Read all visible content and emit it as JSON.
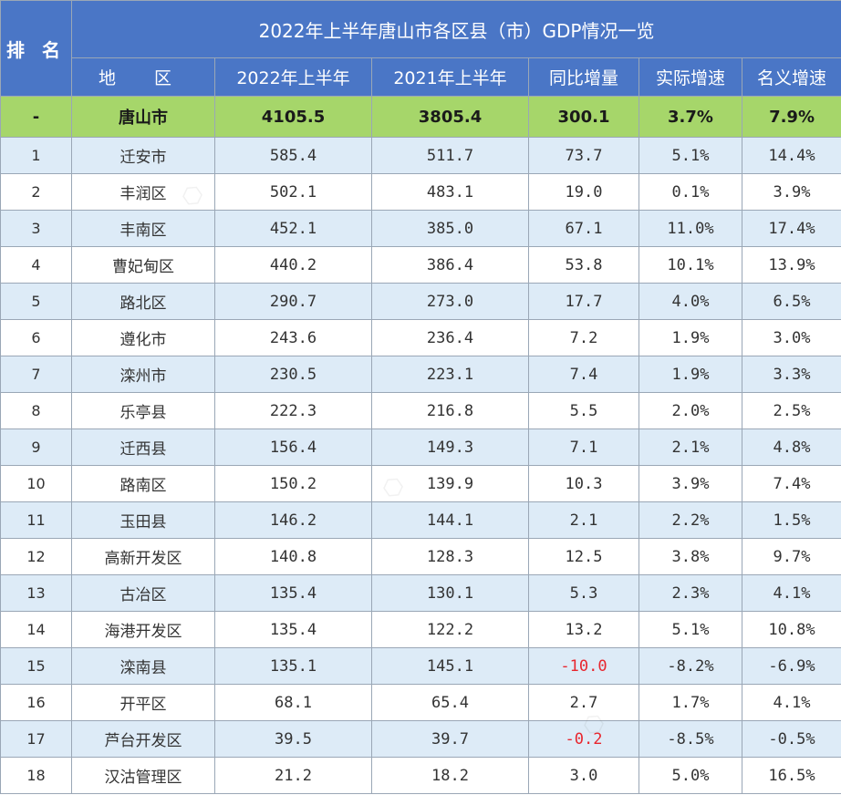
{
  "title": "2022年上半年唐山市各区县（市）GDP情况一览",
  "headers": {
    "rank": "排 名",
    "region": "地 区",
    "h2022": "2022年上半年",
    "h2021": "2021年上半年",
    "diff": "同比增量",
    "real": "实际增速",
    "nominal": "名义增速"
  },
  "total": {
    "rank": "-",
    "region": "唐山市",
    "v2022": "4105.5",
    "v2021": "3805.4",
    "diff": "300.1",
    "real": "3.7%",
    "nominal": "7.9%"
  },
  "rows": [
    {
      "rank": "1",
      "region": "迁安市",
      "v2022": "585.4",
      "v2021": "511.7",
      "diff": "73.7",
      "real": "5.1%",
      "nominal": "14.4%"
    },
    {
      "rank": "2",
      "region": "丰润区",
      "v2022": "502.1",
      "v2021": "483.1",
      "diff": "19.0",
      "real": "0.1%",
      "nominal": "3.9%"
    },
    {
      "rank": "3",
      "region": "丰南区",
      "v2022": "452.1",
      "v2021": "385.0",
      "diff": "67.1",
      "real": "11.0%",
      "nominal": "17.4%"
    },
    {
      "rank": "4",
      "region": "曹妃甸区",
      "v2022": "440.2",
      "v2021": "386.4",
      "diff": "53.8",
      "real": "10.1%",
      "nominal": "13.9%"
    },
    {
      "rank": "5",
      "region": "路北区",
      "v2022": "290.7",
      "v2021": "273.0",
      "diff": "17.7",
      "real": "4.0%",
      "nominal": "6.5%"
    },
    {
      "rank": "6",
      "region": "遵化市",
      "v2022": "243.6",
      "v2021": "236.4",
      "diff": "7.2",
      "real": "1.9%",
      "nominal": "3.0%"
    },
    {
      "rank": "7",
      "region": "滦州市",
      "v2022": "230.5",
      "v2021": "223.1",
      "diff": "7.4",
      "real": "1.9%",
      "nominal": "3.3%"
    },
    {
      "rank": "8",
      "region": "乐亭县",
      "v2022": "222.3",
      "v2021": "216.8",
      "diff": "5.5",
      "real": "2.0%",
      "nominal": "2.5%"
    },
    {
      "rank": "9",
      "region": "迁西县",
      "v2022": "156.4",
      "v2021": "149.3",
      "diff": "7.1",
      "real": "2.1%",
      "nominal": "4.8%"
    },
    {
      "rank": "10",
      "region": "路南区",
      "v2022": "150.2",
      "v2021": "139.9",
      "diff": "10.3",
      "real": "3.9%",
      "nominal": "7.4%"
    },
    {
      "rank": "11",
      "region": "玉田县",
      "v2022": "146.2",
      "v2021": "144.1",
      "diff": "2.1",
      "real": "2.2%",
      "nominal": "1.5%"
    },
    {
      "rank": "12",
      "region": "高新开发区",
      "v2022": "140.8",
      "v2021": "128.3",
      "diff": "12.5",
      "real": "3.8%",
      "nominal": "9.7%"
    },
    {
      "rank": "13",
      "region": "古冶区",
      "v2022": "135.4",
      "v2021": "130.1",
      "diff": "5.3",
      "real": "2.3%",
      "nominal": "4.1%"
    },
    {
      "rank": "14",
      "region": "海港开发区",
      "v2022": "135.4",
      "v2021": "122.2",
      "diff": "13.2",
      "real": "5.1%",
      "nominal": "10.8%"
    },
    {
      "rank": "15",
      "region": "滦南县",
      "v2022": "135.1",
      "v2021": "145.1",
      "diff": "-10.0",
      "real": "-8.2%",
      "nominal": "-6.9%"
    },
    {
      "rank": "16",
      "region": "开平区",
      "v2022": "68.1",
      "v2021": "65.4",
      "diff": "2.7",
      "real": "1.7%",
      "nominal": "4.1%"
    },
    {
      "rank": "17",
      "region": "芦台开发区",
      "v2022": "39.5",
      "v2021": "39.7",
      "diff": "-0.2",
      "real": "-8.5%",
      "nominal": "-0.5%"
    },
    {
      "rank": "18",
      "region": "汉沽管理区",
      "v2022": "21.2",
      "v2021": "18.2",
      "diff": "3.0",
      "real": "5.0%",
      "nominal": "16.5%"
    }
  ],
  "colors": {
    "header_bg": "#4a76c6",
    "total_bg": "#a6d66a",
    "stripe_bg": "#ddebf7",
    "negative_text": "#e8262e"
  }
}
